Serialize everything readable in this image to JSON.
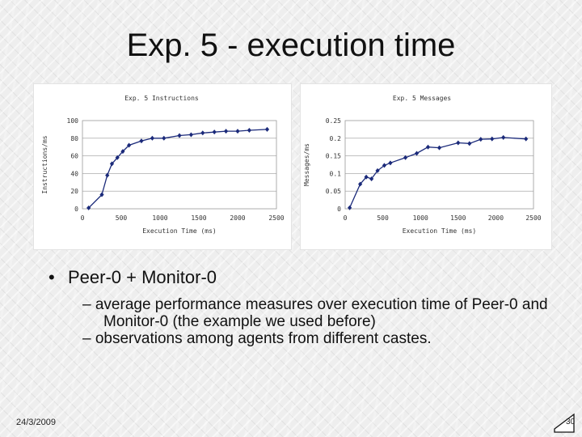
{
  "slide": {
    "title": "Exp. 5 - execution time",
    "bullet": "Peer-0 + Monitor-0",
    "subbullets": [
      "average performance measures over execution time of Peer-0 and Monitor-0 (the example we used before)",
      "observations among agents from different castes."
    ],
    "date": "24/3/2009",
    "page": "30"
  },
  "colors": {
    "series": "#1b2a7a",
    "grid": "#9a9a9a"
  },
  "chart_data": [
    {
      "type": "line",
      "title": "Exp. 5  Instructions",
      "xlabel": "Execution Time (ms)",
      "ylabel": "Instructions/ms",
      "xlim": [
        0,
        2500
      ],
      "ylim": [
        0,
        100
      ],
      "xticks": [
        "0",
        "500",
        "1000",
        "1500",
        "2000",
        "2500"
      ],
      "yticks": [
        "0",
        "20",
        "40",
        "60",
        "80",
        "100"
      ],
      "grid": "horizontal",
      "series": [
        {
          "x": [
            80,
            250,
            320,
            380,
            450,
            520,
            600,
            760,
            900,
            1050,
            1250,
            1400,
            1550,
            1700,
            1850,
            2000,
            2150,
            2380
          ],
          "y": [
            1,
            16,
            38,
            51,
            58,
            65,
            72,
            77,
            80,
            80,
            83,
            84,
            86,
            87,
            88,
            88,
            89,
            90
          ]
        }
      ]
    },
    {
      "type": "line",
      "title": "Exp. 5  Messages",
      "xlabel": "Execution Time (ms)",
      "ylabel": "Messages/ms",
      "xlim": [
        0,
        2500
      ],
      "ylim": [
        0,
        0.25
      ],
      "xticks": [
        "0",
        "500",
        "1000",
        "1500",
        "2000",
        "2500"
      ],
      "yticks": [
        "0",
        "0.05",
        "0.1",
        "0.15",
        "0.2",
        "0.25"
      ],
      "grid": "horizontal",
      "series": [
        {
          "x": [
            60,
            200,
            280,
            350,
            430,
            520,
            600,
            800,
            950,
            1100,
            1250,
            1500,
            1650,
            1800,
            1950,
            2100,
            2400
          ],
          "y": [
            0.003,
            0.07,
            0.09,
            0.085,
            0.108,
            0.123,
            0.13,
            0.145,
            0.157,
            0.175,
            0.173,
            0.187,
            0.185,
            0.197,
            0.198,
            0.202,
            0.198
          ]
        }
      ]
    }
  ]
}
